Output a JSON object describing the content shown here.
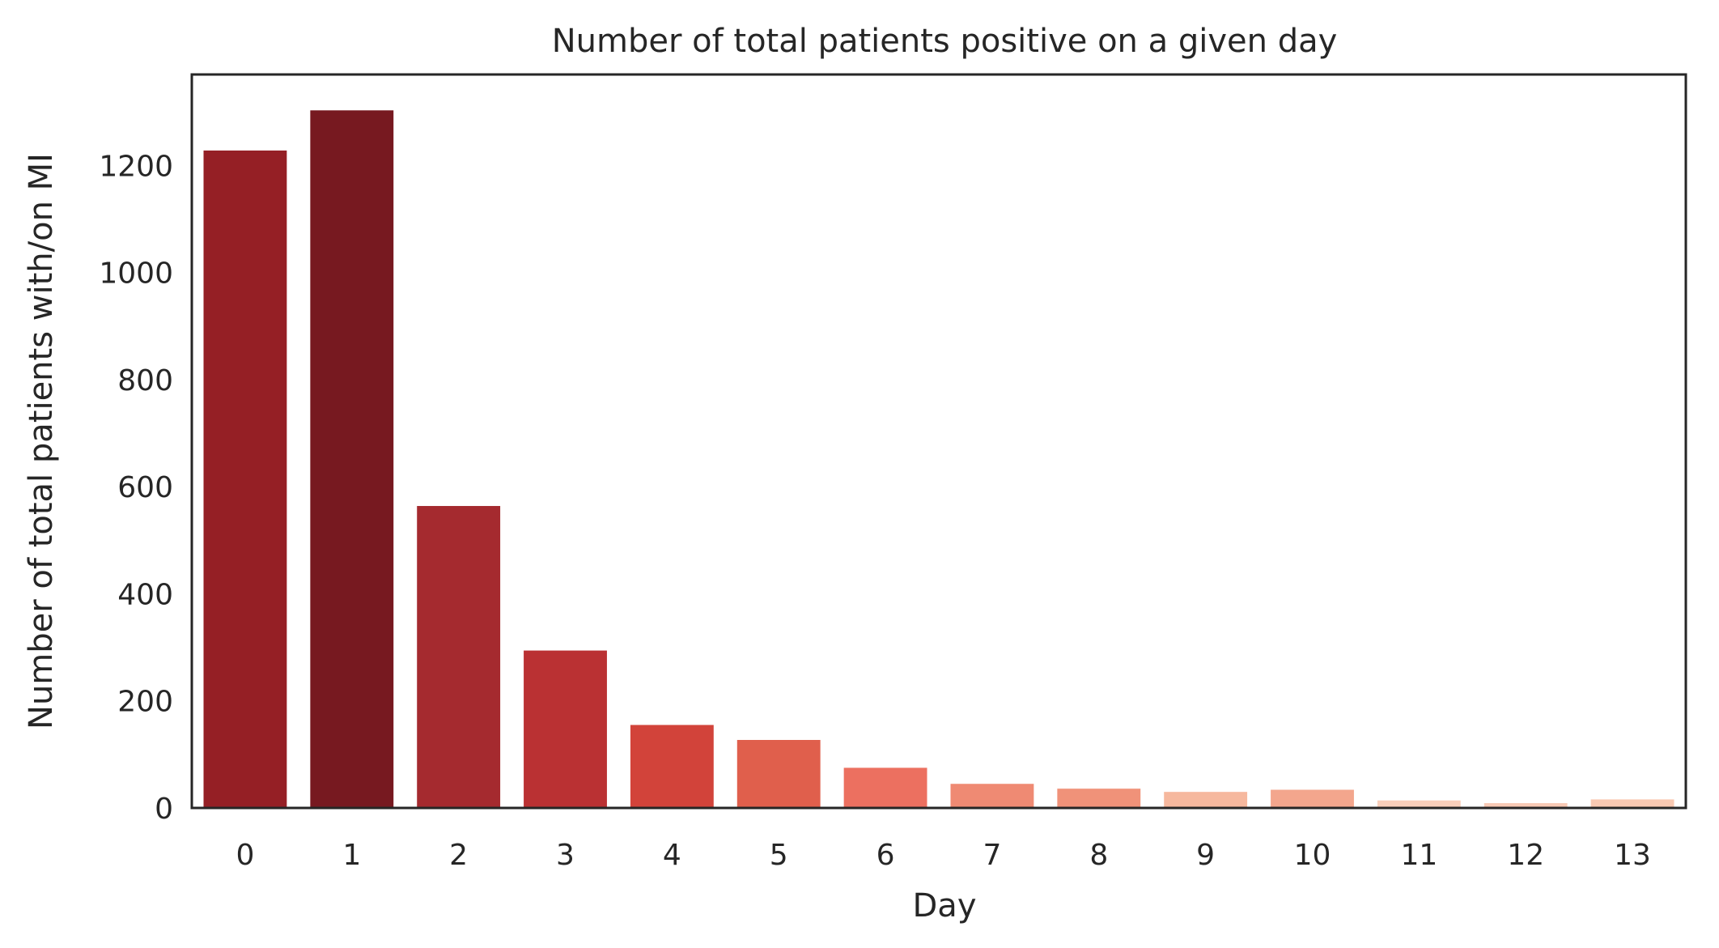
{
  "chart_data": {
    "type": "bar",
    "title": "Number of total patients positive on a given day",
    "xlabel": "Day",
    "ylabel": "Number of total patients with/on MI",
    "categories": [
      "0",
      "1",
      "2",
      "3",
      "4",
      "5",
      "6",
      "7",
      "8",
      "9",
      "10",
      "11",
      "12",
      "13"
    ],
    "values": [
      1228,
      1303,
      564,
      294,
      155,
      127,
      75,
      45,
      36,
      30,
      34,
      14,
      9,
      16
    ],
    "colors": [
      "#951f25",
      "#771920",
      "#a52a2f",
      "#ba3133",
      "#d2433a",
      "#e05f4c",
      "#ec7060",
      "#ef8a73",
      "#f09279",
      "#f6b89e",
      "#f3a68d",
      "#f9cfbb",
      "#f8cab5",
      "#f9c9b2"
    ],
    "yticks": [
      0,
      200,
      400,
      600,
      800,
      1000,
      1200
    ],
    "ylim": [
      0,
      1370
    ],
    "grid": false,
    "legend": "none"
  }
}
